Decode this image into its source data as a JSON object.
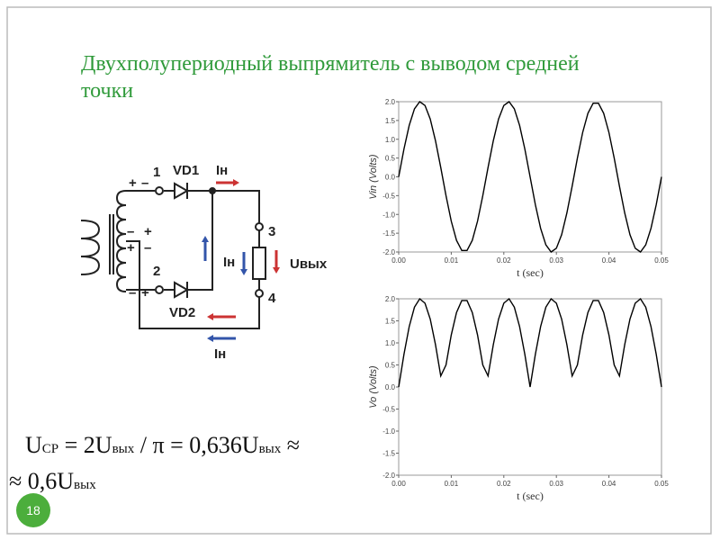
{
  "slide": {
    "title": "Двухполупериодный выпрямитель с выводом средней точки",
    "title_lines": [
      "Двухполупериодный выпрямитель с выводом средней",
      "точки"
    ],
    "page_number": "18"
  },
  "diagram": {
    "labels": {
      "n1": "1",
      "vd1": "VD1",
      "ih_top": "Iн",
      "n3": "3",
      "uout": "Uвых",
      "ih_mid": "Iн",
      "n4": "4",
      "n2": "2",
      "vd2": "VD2",
      "ih_bottom": "Iн",
      "plus": "+",
      "minus": "–"
    }
  },
  "formula": {
    "line1": [
      "U",
      "СР",
      " = 2U",
      "вых",
      " / π = 0,636U",
      "вых",
      " ≈"
    ],
    "line2": [
      "≈ 0,6U",
      "вых"
    ]
  },
  "chart_data": [
    {
      "type": "line",
      "xlabel": "t (sec)",
      "ylabel": "Vin  (Volts)",
      "color": "#000000",
      "x": [
        0,
        0.001,
        0.002,
        0.003,
        0.004,
        0.005,
        0.006,
        0.007,
        0.008,
        0.009,
        0.01,
        0.011,
        0.012,
        0.013,
        0.014,
        0.015,
        0.016,
        0.017,
        0.018,
        0.019,
        0.02,
        0.021,
        0.022,
        0.023,
        0.024,
        0.025,
        0.026,
        0.027,
        0.028,
        0.029,
        0.03,
        0.031,
        0.032,
        0.033,
        0.034,
        0.035,
        0.036,
        0.037,
        0.038,
        0.039,
        0.04,
        0.041,
        0.042,
        0.043,
        0.044,
        0.045,
        0.046,
        0.047,
        0.048,
        0.049,
        0.05
      ],
      "values": [
        0,
        0.74,
        1.37,
        1.81,
        2.0,
        1.9,
        1.54,
        0.96,
        0.25,
        -0.5,
        -1.18,
        -1.69,
        -1.96,
        -1.96,
        -1.69,
        -1.18,
        -0.5,
        0.25,
        0.96,
        1.54,
        1.9,
        2.0,
        1.81,
        1.37,
        0.74,
        0,
        -0.74,
        -1.37,
        -1.81,
        -2.0,
        -1.9,
        -1.54,
        -0.96,
        -0.25,
        0.5,
        1.18,
        1.69,
        1.96,
        1.96,
        1.69,
        1.18,
        0.5,
        -0.25,
        -0.96,
        -1.54,
        -1.9,
        -2.0,
        -1.81,
        -1.37,
        -0.74,
        0
      ],
      "xlim": [
        0,
        0.05
      ],
      "xticks": [
        {
          "value": 0,
          "label": "0.00"
        },
        {
          "value": 0.01,
          "label": "0.01"
        },
        {
          "value": 0.02,
          "label": "0.02"
        },
        {
          "value": 0.03,
          "label": "0.03"
        },
        {
          "value": 0.04,
          "label": "0.04"
        },
        {
          "value": 0.05,
          "label": "0.05"
        }
      ],
      "ylim": [
        -2,
        2
      ],
      "yticks": [
        {
          "value": -2,
          "label": "-2.0"
        },
        {
          "value": -1.5,
          "label": "-1.5"
        },
        {
          "value": -1,
          "label": "-1.0"
        },
        {
          "value": -0.5,
          "label": "-0.5"
        },
        {
          "value": 0,
          "label": "0.0"
        },
        {
          "value": 0.5,
          "label": "0.5"
        },
        {
          "value": 1,
          "label": "1.0"
        },
        {
          "value": 1.5,
          "label": "1.5"
        },
        {
          "value": 2,
          "label": "2.0"
        }
      ]
    },
    {
      "type": "line",
      "xlabel": "t (sec)",
      "ylabel": "Vo  (Volts)",
      "color": "#000000",
      "x": [
        0,
        0.001,
        0.002,
        0.003,
        0.004,
        0.005,
        0.006,
        0.007,
        0.008,
        0.009,
        0.01,
        0.011,
        0.012,
        0.013,
        0.014,
        0.015,
        0.016,
        0.017,
        0.018,
        0.019,
        0.02,
        0.021,
        0.022,
        0.023,
        0.024,
        0.025,
        0.026,
        0.027,
        0.028,
        0.029,
        0.03,
        0.031,
        0.032,
        0.033,
        0.034,
        0.035,
        0.036,
        0.037,
        0.038,
        0.039,
        0.04,
        0.041,
        0.042,
        0.043,
        0.044,
        0.045,
        0.046,
        0.047,
        0.048,
        0.049,
        0.05
      ],
      "values": [
        0,
        0.74,
        1.37,
        1.81,
        2.0,
        1.9,
        1.54,
        0.96,
        0.25,
        0.5,
        1.18,
        1.69,
        1.96,
        1.96,
        1.69,
        1.18,
        0.5,
        0.25,
        0.96,
        1.54,
        1.9,
        2.0,
        1.81,
        1.37,
        0.74,
        0,
        0.74,
        1.37,
        1.81,
        2.0,
        1.9,
        1.54,
        0.96,
        0.25,
        0.5,
        1.18,
        1.69,
        1.96,
        1.96,
        1.69,
        1.18,
        0.5,
        0.25,
        0.96,
        1.54,
        1.9,
        2.0,
        1.81,
        1.37,
        0.74,
        0
      ],
      "xlim": [
        0,
        0.05
      ],
      "xticks": [
        {
          "value": 0,
          "label": "0.00"
        },
        {
          "value": 0.01,
          "label": "0.01"
        },
        {
          "value": 0.02,
          "label": "0.02"
        },
        {
          "value": 0.03,
          "label": "0.03"
        },
        {
          "value": 0.04,
          "label": "0.04"
        },
        {
          "value": 0.05,
          "label": "0.05"
        }
      ],
      "ylim": [
        -2,
        2
      ],
      "yticks": [
        {
          "value": -2,
          "label": "-2.0"
        },
        {
          "value": -1.5,
          "label": "-1.5"
        },
        {
          "value": -1,
          "label": "-1.0"
        },
        {
          "value": -0.5,
          "label": "-0.5"
        },
        {
          "value": 0,
          "label": "0.0"
        },
        {
          "value": 0.5,
          "label": "0.5"
        },
        {
          "value": 1,
          "label": "1.0"
        },
        {
          "value": 1.5,
          "label": "1.5"
        },
        {
          "value": 2,
          "label": "2.0"
        }
      ]
    }
  ]
}
